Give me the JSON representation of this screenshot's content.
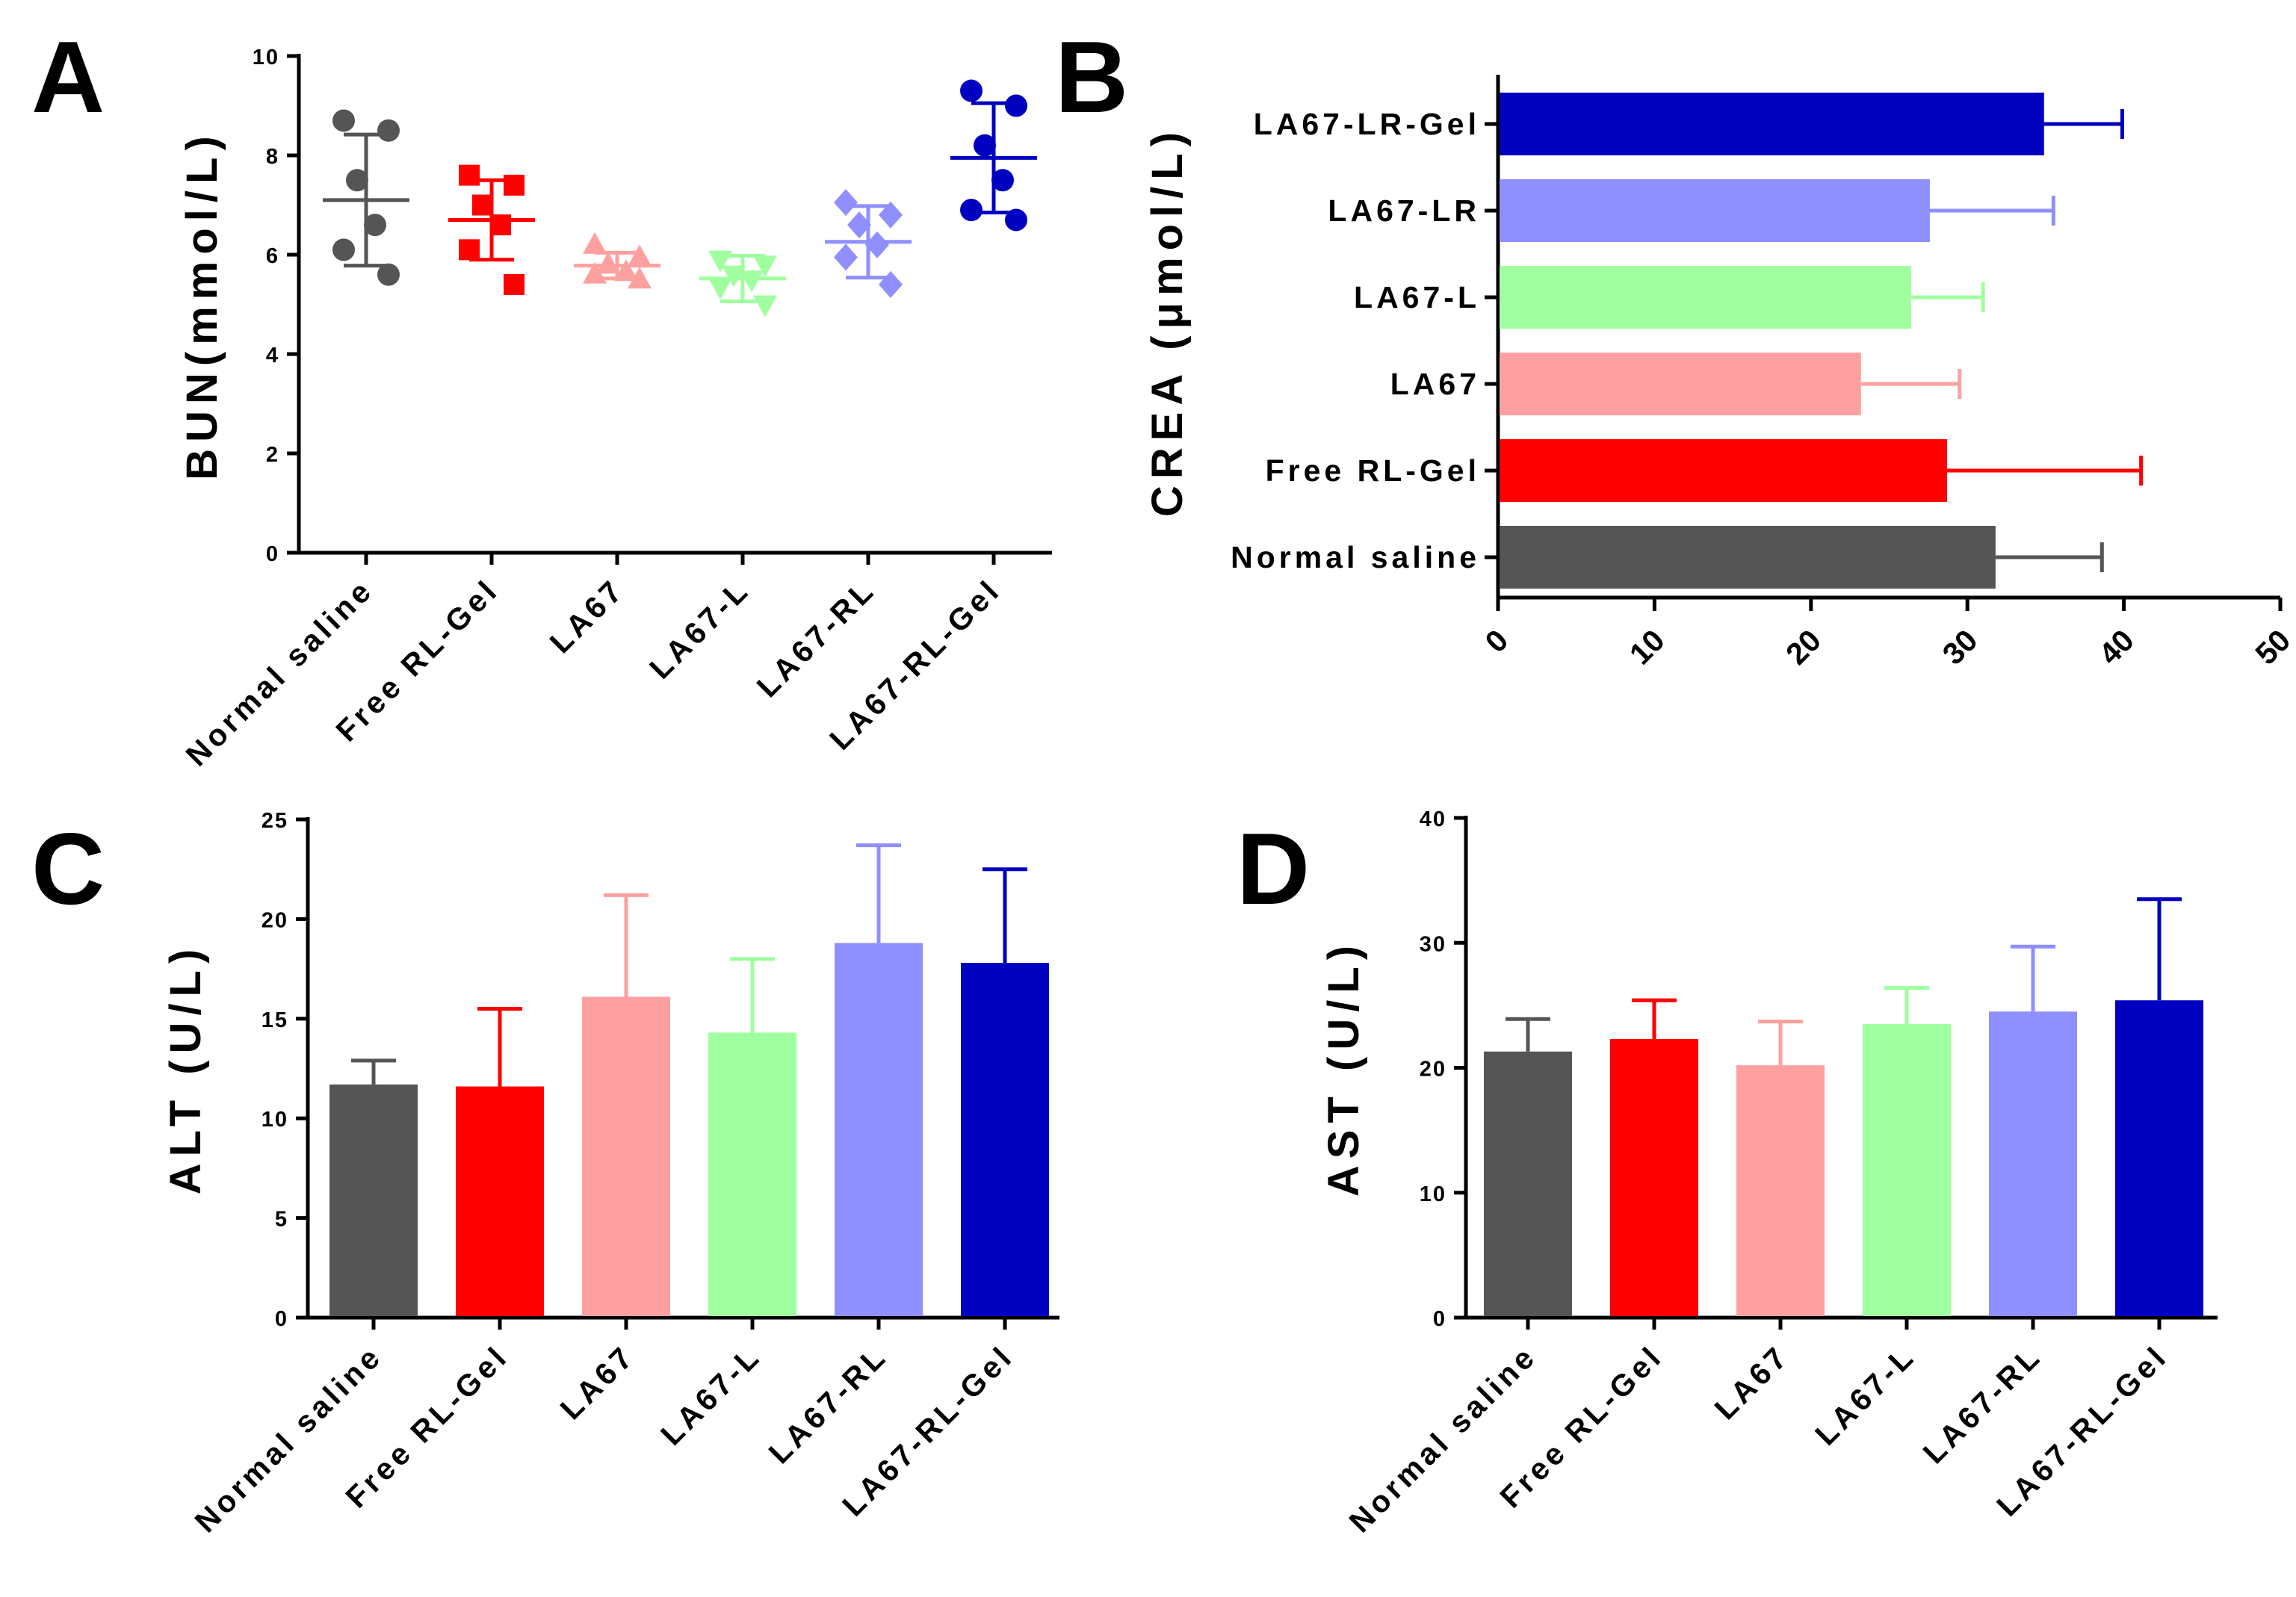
{
  "colors": [
    "#555555",
    "#ff0000",
    "#ffa0a0",
    "#a0ff9f",
    "#8f8fff",
    "#0000c0"
  ],
  "chart_data": [
    {
      "panel": "A",
      "type": "scatter",
      "title": "",
      "ylabel": "BUN(mmol/L)",
      "xlabel": "",
      "categories": [
        "Normal saline",
        "Free RL-Gel",
        "LA67",
        "LA67-L",
        "LA67-RL",
        "LA67-RL-Gel"
      ],
      "markers": [
        "circle",
        "square",
        "triangle-up",
        "triangle-down",
        "diamond",
        "circle"
      ],
      "points": [
        [
          8.7,
          8.5,
          7.5,
          6.6,
          6.1,
          5.6
        ],
        [
          7.6,
          7.4,
          7.0,
          6.6,
          6.1,
          5.4
        ],
        [
          6.2,
          5.95,
          5.8,
          5.65,
          5.6,
          5.5
        ],
        [
          5.9,
          5.8,
          5.6,
          5.5,
          5.35,
          5.0
        ],
        [
          7.05,
          6.8,
          6.6,
          6.2,
          5.95,
          5.4
        ],
        [
          9.3,
          9.0,
          8.2,
          7.5,
          6.9,
          6.7
        ]
      ],
      "mean": [
        7.1,
        6.7,
        5.78,
        5.52,
        6.26,
        7.95
      ],
      "sd": [
        1.32,
        0.8,
        0.26,
        0.46,
        0.72,
        1.1
      ],
      "ylim": [
        0,
        10
      ],
      "yticks": [
        "0",
        "2",
        "4",
        "6",
        "8",
        "10"
      ]
    },
    {
      "panel": "B",
      "type": "bar",
      "orientation": "horizontal",
      "title": "",
      "ylabel": "CREA (μmol/L)",
      "xlabel": "",
      "categories": [
        "Normal saline",
        "Free RL-Gel",
        "LA67",
        "LA67-L",
        "LA67-LR",
        "LA67-LR-Gel"
      ],
      "values": [
        31.8,
        28.7,
        23.2,
        26.4,
        27.6,
        34.9
      ],
      "error": [
        6.8,
        12.4,
        6.3,
        4.6,
        7.9,
        5.0
      ],
      "xlim": [
        0,
        50
      ],
      "xticks": [
        "0",
        "10",
        "20",
        "30",
        "40",
        "50"
      ]
    },
    {
      "panel": "C",
      "type": "bar",
      "title": "",
      "ylabel": "ALT (U/L)",
      "xlabel": "",
      "categories": [
        "Normal saline",
        "Free RL-Gel",
        "LA67",
        "LA67-L",
        "LA67-RL",
        "LA67-RL-Gel"
      ],
      "values": [
        11.7,
        11.6,
        16.1,
        14.3,
        18.8,
        17.8
      ],
      "error": [
        1.2,
        3.9,
        5.1,
        3.7,
        4.9,
        4.7
      ],
      "ylim": [
        0,
        25
      ],
      "yticks": [
        "0",
        "5",
        "10",
        "15",
        "20",
        "25"
      ]
    },
    {
      "panel": "D",
      "type": "bar",
      "title": "",
      "ylabel": "AST (U/L)",
      "xlabel": "",
      "categories": [
        "Normal saline",
        "Free RL-Gel",
        "LA67",
        "LA67-L",
        "LA67-RL",
        "LA67-RL-Gel"
      ],
      "values": [
        21.3,
        22.3,
        20.2,
        23.5,
        24.5,
        25.4
      ],
      "error": [
        2.6,
        3.1,
        3.5,
        2.9,
        5.2,
        8.1
      ],
      "ylim": [
        0,
        40
      ],
      "yticks": [
        "0",
        "10",
        "20",
        "30",
        "40"
      ]
    }
  ]
}
